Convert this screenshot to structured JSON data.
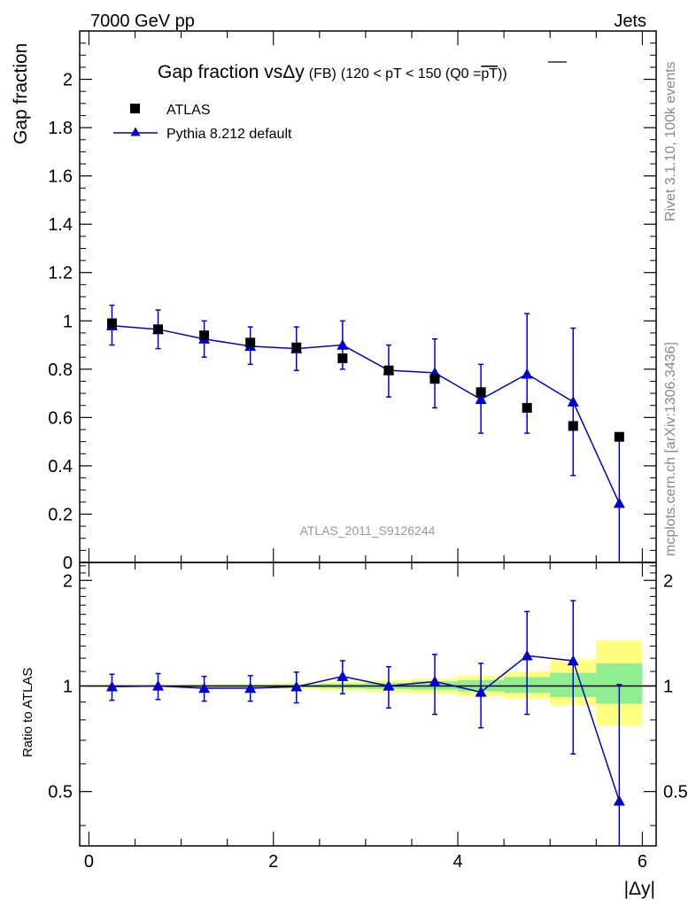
{
  "header": {
    "left": "7000 GeV pp",
    "right": "Jets"
  },
  "side_labels": {
    "rivet": "Rivet 3.1.10,  100k events",
    "mcplots": "mcplots.cern.ch [arXiv:1306.3436]"
  },
  "watermark": "ATLAS_2011_S9126244",
  "title": {
    "main": "Gap fraction vs",
    "delta": "Δy",
    "small": "(FB)",
    "range": "(120 < pT < 150 (Q0 =",
    "overline": "pT",
    "close": "))"
  },
  "chart_data": [
    {
      "type": "scatter",
      "panel": "main",
      "ylabel": "Gap fraction",
      "xlim": [
        -0.1,
        6.15
      ],
      "ylim": [
        0,
        2.2
      ],
      "y_ticks": [
        0,
        0.2,
        0.4,
        0.6,
        0.8,
        1,
        1.2,
        1.4,
        1.6,
        1.8,
        2
      ],
      "y_tick_labels": [
        "0",
        "0.2",
        "0.4",
        "0.6",
        "0.8",
        "1",
        "1.2",
        "1.4",
        "1.6",
        "1.8",
        "2"
      ],
      "legend_position": "top-left",
      "series": [
        {
          "name": "ATLAS",
          "marker": "square",
          "color": "#000000",
          "x": [
            0.25,
            0.75,
            1.25,
            1.75,
            2.25,
            2.75,
            3.25,
            3.75,
            4.25,
            4.75,
            5.25,
            5.75
          ],
          "y": [
            0.99,
            0.965,
            0.94,
            0.91,
            0.89,
            0.845,
            0.795,
            0.76,
            0.705,
            0.64,
            0.565,
            0.52
          ]
        },
        {
          "name": "Pythia 8.212 default",
          "marker": "triangle",
          "color": "#0000cc",
          "x": [
            0.25,
            0.75,
            1.25,
            1.75,
            2.25,
            2.75,
            3.25,
            3.75,
            4.25,
            4.75,
            5.25,
            5.75
          ],
          "y": [
            0.98,
            0.965,
            0.925,
            0.895,
            0.885,
            0.9,
            0.795,
            0.785,
            0.675,
            0.78,
            0.665,
            0.245
          ],
          "y_err_low": [
            0.08,
            0.08,
            0.075,
            0.075,
            0.09,
            0.1,
            0.11,
            0.145,
            0.14,
            0.245,
            0.305,
            0.245
          ],
          "y_err_high": [
            0.085,
            0.08,
            0.075,
            0.08,
            0.09,
            0.1,
            0.105,
            0.14,
            0.145,
            0.25,
            0.305,
            0.27
          ]
        }
      ]
    },
    {
      "type": "scatter",
      "panel": "ratio",
      "ylabel": "Ratio to ATLAS",
      "xlabel": "|Δy|",
      "xlim": [
        -0.1,
        6.15
      ],
      "ylim": [
        0.35,
        2.25
      ],
      "x_ticks": [
        0,
        2,
        4,
        6
      ],
      "x_tick_labels": [
        "0",
        "2",
        "4",
        "6"
      ],
      "y_ticks": [
        0.5,
        1,
        2
      ],
      "y_tick_labels": [
        "0.5",
        "1",
        "2"
      ],
      "bands": {
        "x_low": [
          0.0,
          0.5,
          1.0,
          1.5,
          2.0,
          2.5,
          3.0,
          3.5,
          4.0,
          4.5,
          5.0,
          5.5
        ],
        "x_high": [
          0.5,
          1.0,
          1.5,
          2.0,
          2.5,
          3.0,
          3.5,
          4.0,
          4.5,
          5.0,
          5.5,
          6.0
        ],
        "inner_low": [
          0.995,
          0.995,
          0.993,
          0.992,
          0.99,
          0.985,
          0.98,
          0.975,
          0.965,
          0.955,
          0.93,
          0.89
        ],
        "inner_high": [
          1.005,
          1.005,
          1.007,
          1.008,
          1.01,
          1.015,
          1.02,
          1.03,
          1.04,
          1.06,
          1.09,
          1.16
        ],
        "outer_low": [
          0.99,
          0.99,
          0.988,
          0.985,
          0.98,
          0.97,
          0.96,
          0.95,
          0.935,
          0.92,
          0.88,
          0.77
        ],
        "outer_high": [
          1.01,
          1.01,
          1.012,
          1.015,
          1.02,
          1.03,
          1.04,
          1.05,
          1.07,
          1.1,
          1.19,
          1.35
        ],
        "inner_color": "#90ee90",
        "outer_color": "#ffff80"
      },
      "series": [
        {
          "name": "Pythia 8.212 default",
          "marker": "triangle",
          "color": "#0000cc",
          "x": [
            0.25,
            0.75,
            1.25,
            1.75,
            2.25,
            2.75,
            3.25,
            3.75,
            4.25,
            4.75,
            5.25,
            5.75
          ],
          "y": [
            0.995,
            1.0,
            0.985,
            0.985,
            0.995,
            1.065,
            1.0,
            1.03,
            0.96,
            1.22,
            1.18,
            0.47
          ],
          "y_err_low": [
            0.085,
            0.085,
            0.08,
            0.08,
            0.1,
            0.115,
            0.135,
            0.2,
            0.2,
            0.39,
            0.54,
            0.47
          ],
          "y_err_high": [
            0.085,
            0.085,
            0.08,
            0.085,
            0.1,
            0.115,
            0.135,
            0.2,
            0.2,
            0.41,
            0.57,
            0.54
          ]
        }
      ]
    }
  ]
}
